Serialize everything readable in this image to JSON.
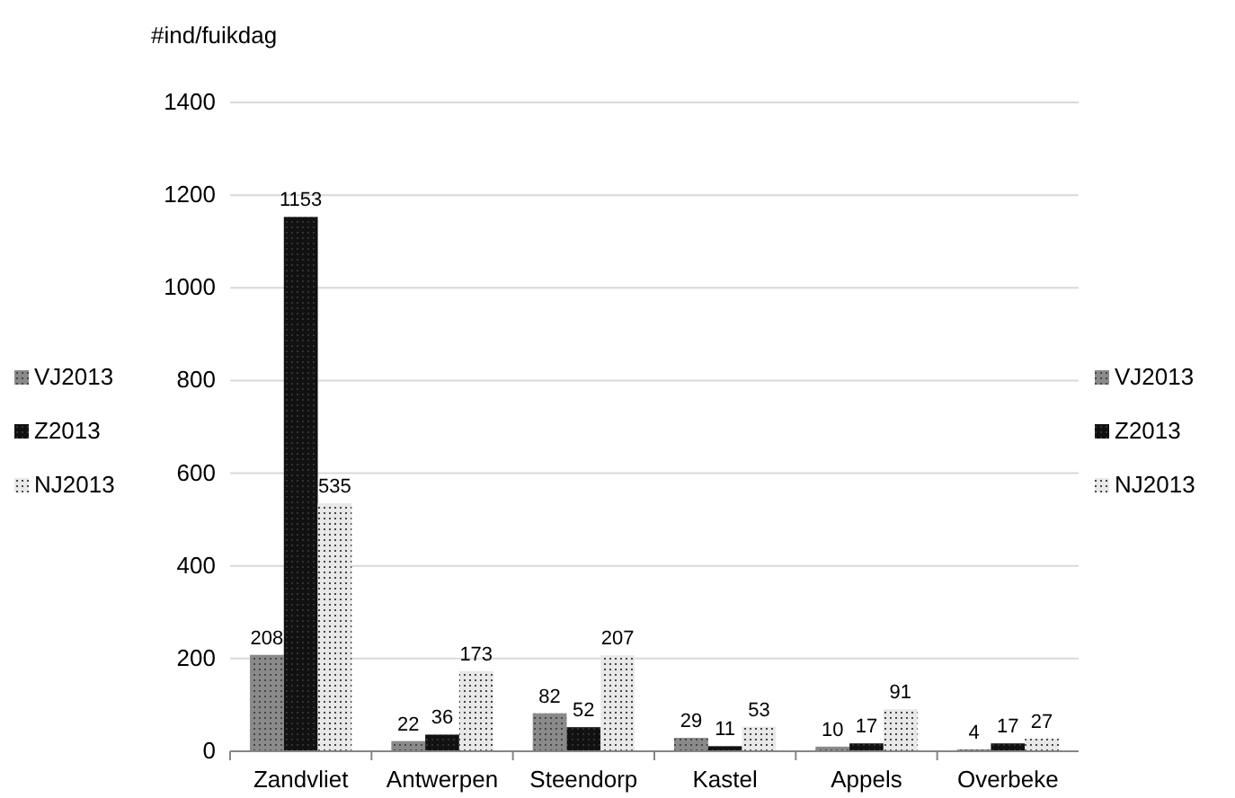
{
  "chart_data": {
    "type": "bar",
    "ylabel": "#ind/fuikdag",
    "categories": [
      "Zandvliet",
      "Antwerpen",
      "Steendorp",
      "Kastel",
      "Appels",
      "Overbeke"
    ],
    "series": [
      {
        "name": "VJ2013",
        "color": "#8a8a8a",
        "values": [
          208,
          22,
          82,
          29,
          10,
          4
        ]
      },
      {
        "name": "Z2013",
        "color": "#111111",
        "values": [
          1153,
          36,
          52,
          11,
          17,
          17
        ]
      },
      {
        "name": "NJ2013",
        "color": "#e8e8e8",
        "values": [
          535,
          173,
          207,
          53,
          91,
          27
        ]
      }
    ],
    "ylim": [
      0,
      1400
    ],
    "yticks": [
      0,
      200,
      400,
      600,
      800,
      1000,
      1200,
      1400
    ],
    "grid": "y",
    "data_labels": true,
    "legend": [
      "left",
      "right"
    ]
  }
}
